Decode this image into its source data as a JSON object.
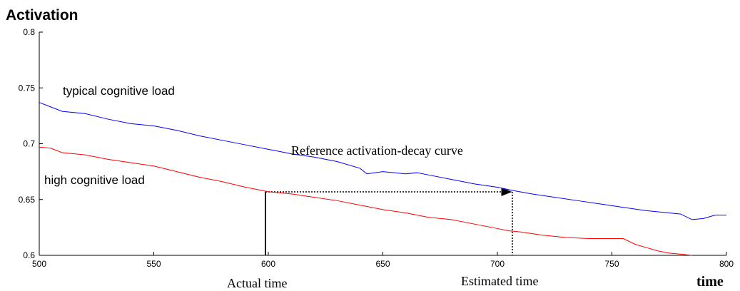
{
  "chart_data": {
    "type": "line",
    "y_label": "Activation",
    "x_label": "time",
    "xlim": [
      500,
      800
    ],
    "ylim": [
      0.6,
      0.8
    ],
    "xticks": [
      500,
      550,
      600,
      650,
      700,
      750,
      800
    ],
    "yticks": [
      0.6,
      0.65,
      0.7,
      0.75,
      0.8
    ],
    "series": [
      {
        "name": "typical cognitive load",
        "color": "#0000ff",
        "x": [
          500,
          505,
          510,
          520,
          530,
          540,
          550,
          560,
          570,
          580,
          590,
          600,
          610,
          620,
          630,
          640,
          643,
          650,
          660,
          665,
          670,
          680,
          690,
          700,
          707,
          715,
          725,
          735,
          745,
          755,
          765,
          775,
          780,
          785,
          790,
          795,
          800
        ],
        "values": [
          0.737,
          0.733,
          0.729,
          0.727,
          0.722,
          0.718,
          0.716,
          0.712,
          0.707,
          0.703,
          0.699,
          0.695,
          0.691,
          0.688,
          0.684,
          0.678,
          0.673,
          0.675,
          0.673,
          0.674,
          0.672,
          0.668,
          0.664,
          0.661,
          0.658,
          0.655,
          0.652,
          0.649,
          0.646,
          0.643,
          0.64,
          0.638,
          0.637,
          0.632,
          0.633,
          0.636,
          0.636
        ]
      },
      {
        "name": "high cognitive load",
        "color": "#ff0000",
        "x": [
          500,
          505,
          510,
          520,
          530,
          540,
          550,
          560,
          570,
          580,
          590,
          600,
          610,
          620,
          630,
          640,
          650,
          660,
          670,
          680,
          690,
          700,
          705,
          710,
          720,
          730,
          740,
          750,
          755,
          760,
          765,
          770,
          775,
          780,
          785
        ],
        "values": [
          0.697,
          0.696,
          0.692,
          0.69,
          0.686,
          0.683,
          0.68,
          0.675,
          0.67,
          0.666,
          0.661,
          0.657,
          0.655,
          0.652,
          0.649,
          0.645,
          0.641,
          0.638,
          0.634,
          0.632,
          0.628,
          0.624,
          0.622,
          0.621,
          0.618,
          0.616,
          0.615,
          0.615,
          0.615,
          0.61,
          0.607,
          0.604,
          0.602,
          0.601,
          0.6
        ]
      }
    ],
    "annotations": [
      "Reference activation-decay curve",
      "Actual time",
      "Estimated time"
    ]
  }
}
